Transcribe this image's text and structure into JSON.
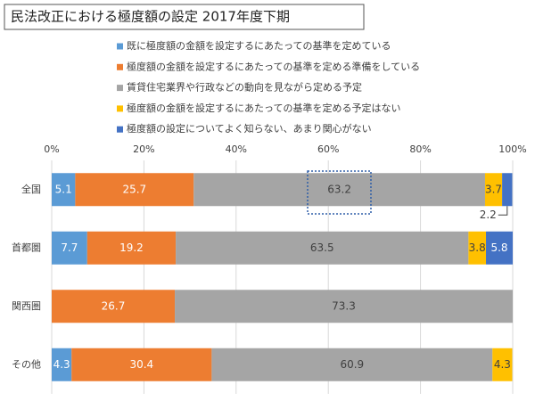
{
  "chart_data": {
    "type": "stacked-bar-horizontal",
    "title": "民法改正における極度額の設定  2017年度下期",
    "categories": [
      "全国",
      "首都圏",
      "関西圏",
      "その他"
    ],
    "series": [
      {
        "name": "既に極度額の金額を設定するにあたっての基準を定めている",
        "color": "#5b9bd5",
        "values": [
          5.1,
          7.7,
          null,
          4.3
        ]
      },
      {
        "name": "極度額の金額を設定するにあたっての基準を定める準備をしている",
        "color": "#ed7d31",
        "values": [
          25.7,
          19.2,
          26.7,
          30.4
        ]
      },
      {
        "name": "賃貸住宅業界や行政などの動向を見ながら定める予定",
        "color": "#a5a5a5",
        "values": [
          63.2,
          63.5,
          73.3,
          60.9
        ]
      },
      {
        "name": "極度額の金額を設定するにあたっての基準を定める予定はない",
        "color": "#ffc000",
        "values": [
          3.7,
          3.8,
          null,
          4.3
        ]
      },
      {
        "name": "極度額の設定についてよく知らない、あまり関心がない",
        "color": "#4472c4",
        "values": [
          2.2,
          5.8,
          null,
          null
        ]
      }
    ],
    "xlim": [
      0,
      100
    ],
    "xticks": [
      {
        "value": 0,
        "label": "0%"
      },
      {
        "value": 20,
        "label": "20%"
      },
      {
        "value": 40,
        "label": "40%"
      },
      {
        "value": 60,
        "label": "60%"
      },
      {
        "value": 80,
        "label": "80%"
      },
      {
        "value": 100,
        "label": "100%"
      }
    ],
    "grid": true
  }
}
